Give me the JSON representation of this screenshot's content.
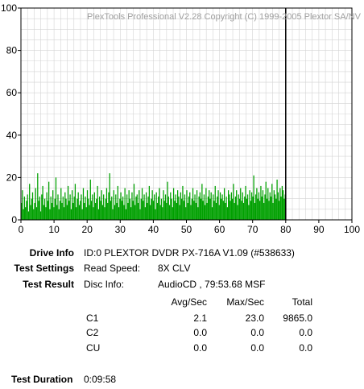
{
  "chart_data": {
    "type": "area",
    "title": "PlexTools Professional V2.28 Copyright (C) 1999-2005 Plextor SA/NV",
    "xlabel": "",
    "ylabel": "",
    "xlim": [
      0,
      100
    ],
    "ylim": [
      0,
      100
    ],
    "x_ticks": [
      "0",
      "10",
      "20",
      "30",
      "40",
      "50",
      "60",
      "70",
      "80",
      "90",
      "100"
    ],
    "y_ticks": [
      "0",
      "20",
      "40",
      "60",
      "80",
      "100"
    ],
    "grid": true,
    "marker_x": 80,
    "series": [
      {
        "color": "#00a000",
        "x_range": [
          0,
          80
        ],
        "values": [
          8,
          14,
          5,
          11,
          6,
          9,
          12,
          4,
          17,
          7,
          10,
          13,
          5,
          8,
          15,
          6,
          22,
          9,
          11,
          4,
          12,
          16,
          7,
          10,
          6,
          13,
          9,
          18,
          5,
          11,
          8,
          14,
          6,
          10,
          20,
          7,
          12,
          5,
          9,
          15,
          8,
          11,
          6,
          13,
          10,
          7,
          16,
          9,
          12,
          5,
          14,
          8,
          11,
          17,
          6,
          10,
          13,
          7,
          9,
          12,
          5,
          15,
          8,
          11,
          6,
          14,
          10,
          7,
          19,
          9,
          12,
          6,
          13,
          8,
          10,
          16,
          5,
          11,
          9,
          14,
          7,
          12,
          6,
          10,
          15,
          8,
          13,
          22,
          9,
          11,
          5,
          14,
          7,
          12,
          8,
          16,
          6,
          10,
          13,
          9,
          11,
          7,
          15,
          5,
          12,
          8,
          14,
          10,
          6,
          13,
          9,
          17,
          7,
          11,
          12,
          8,
          14,
          5,
          10,
          15,
          9,
          12,
          6,
          13,
          8,
          11,
          16,
          7,
          10,
          14,
          9,
          12,
          5,
          13,
          8,
          11,
          15,
          7,
          10,
          6,
          14,
          9,
          12,
          8,
          18,
          11,
          7,
          13,
          10,
          6,
          15,
          9,
          12,
          8,
          14,
          11,
          7,
          13,
          10,
          16,
          9,
          12,
          6,
          14,
          8,
          11,
          13,
          7,
          10,
          15,
          9,
          12,
          8,
          14,
          6,
          11,
          13,
          10,
          17,
          9,
          12,
          7,
          15,
          8,
          11,
          14,
          10,
          13,
          6,
          12,
          9,
          16,
          8,
          11,
          14,
          7,
          13,
          10,
          12,
          9,
          15,
          8,
          11,
          6,
          14,
          12,
          9,
          13,
          10,
          17,
          8,
          11,
          14,
          7,
          12,
          10,
          15,
          9,
          13,
          8,
          11,
          16,
          10,
          12,
          7,
          14,
          9,
          13,
          11,
          21,
          8,
          12,
          15,
          10,
          13,
          9,
          16,
          11,
          14,
          8,
          12,
          18,
          10,
          15,
          9,
          13,
          11,
          17,
          8,
          14,
          12,
          10,
          19,
          13,
          9,
          15,
          11,
          16,
          14,
          10,
          12
        ]
      }
    ]
  },
  "info": {
    "drive_label": "Drive Info",
    "drive_value": "ID:0 PLEXTOR DVDR PX-716A V1.09 (#538633)",
    "settings_label": "Test Settings",
    "read_speed_label": "Read Speed:",
    "read_speed_value": "8X CLV",
    "result_label": "Test Result",
    "disc_info_label": "Disc Info:",
    "disc_info_value": "AudioCD , 79:53.68 MSF",
    "col_avg": "Avg/Sec",
    "col_max": "Max/Sec",
    "col_total": "Total",
    "rows": [
      {
        "name": "C1",
        "avg": "2.1",
        "max": "23.0",
        "total": "9865.0"
      },
      {
        "name": "C2",
        "avg": "0.0",
        "max": "0.0",
        "total": "0.0"
      },
      {
        "name": "CU",
        "avg": "0.0",
        "max": "0.0",
        "total": "0.0"
      }
    ],
    "duration_label": "Test Duration",
    "duration_value": "0:09:58"
  }
}
